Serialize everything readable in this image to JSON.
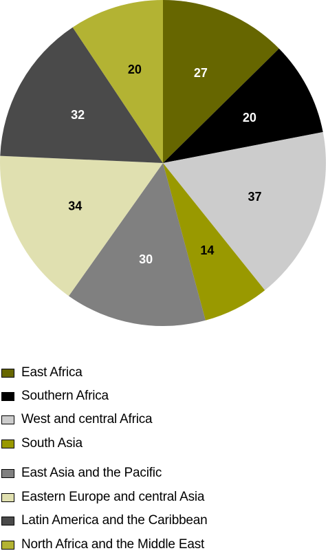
{
  "chart_data": {
    "type": "pie",
    "title": "",
    "series": [
      {
        "label": "East Africa",
        "value": 27,
        "color": "#666600",
        "label_color": "#ffffff"
      },
      {
        "label": "Southern Africa",
        "value": 20,
        "color": "#000000",
        "label_color": "#ffffff"
      },
      {
        "label": "West and central Africa",
        "value": 37,
        "color": "#cccccc",
        "label_color": "#000000"
      },
      {
        "label": "South Asia",
        "value": 14,
        "color": "#999900",
        "label_color": "#000000"
      },
      {
        "label": "East Asia and the Pacific",
        "value": 30,
        "color": "#808080",
        "label_color": "#ffffff"
      },
      {
        "label": "Eastern Europe and central Asia",
        "value": 34,
        "color": "#e0e0b0",
        "label_color": "#000000"
      },
      {
        "label": "Latin America and the Caribbean",
        "value": 32,
        "color": "#4a4a4a",
        "label_color": "#ffffff"
      },
      {
        "label": "North Africa and the Middle East",
        "value": 20,
        "color": "#b3b333",
        "label_color": "#000000"
      }
    ],
    "legend_position": "bottom",
    "start": "top",
    "direction": "clockwise"
  }
}
